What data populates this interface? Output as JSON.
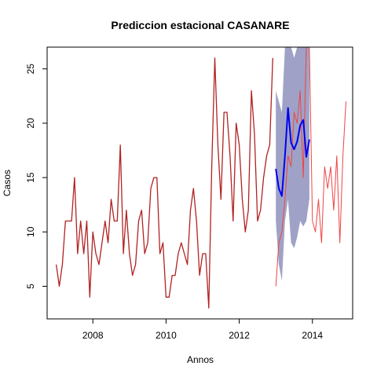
{
  "chart_data": {
    "type": "line",
    "title": "Prediccion estacional CASANARE",
    "xlabel": "Annos",
    "ylabel": "Casos",
    "xlim": [
      2006.75,
      2015.1
    ],
    "ylim": [
      2,
      27
    ],
    "x_ticks": [
      2008,
      2010,
      2012,
      2014
    ],
    "x_tick_labels": [
      "2008",
      "2010",
      "2012",
      "2014"
    ],
    "y_ticks": [
      5,
      10,
      15,
      20,
      25
    ],
    "y_tick_labels": [
      "5",
      "10",
      "15",
      "20",
      "25"
    ],
    "grid": false,
    "legend": "none",
    "series": [
      {
        "key": "observed",
        "color": "#b22222",
        "x_start": 2007.0,
        "step": 0.08333,
        "values": [
          7,
          5,
          7,
          11,
          11,
          11,
          15,
          8,
          11,
          8,
          11,
          4,
          10,
          8,
          7,
          9,
          11,
          9,
          13,
          11,
          11,
          18,
          8,
          12,
          8,
          6,
          7,
          11,
          12,
          8,
          9,
          14,
          15,
          15,
          8,
          9,
          4,
          4,
          6,
          6,
          8,
          9,
          8,
          7,
          12,
          14,
          11,
          6,
          8,
          8,
          3,
          16,
          26,
          18,
          13,
          21,
          21,
          17,
          11,
          20,
          18,
          13,
          10,
          12,
          23,
          19,
          11,
          12,
          15,
          17,
          18,
          26
        ]
      },
      {
        "key": "ci_band",
        "color": "#9fa2c6",
        "x_start": 2013.0,
        "step": 0.08333,
        "lower": [
          11,
          7,
          5.5,
          11,
          13,
          9,
          8.5,
          9.5,
          11,
          10.5,
          11,
          13
        ],
        "upper": [
          23,
          22,
          21,
          27,
          27,
          27,
          26,
          27,
          27,
          27,
          27,
          27
        ]
      },
      {
        "key": "actual",
        "color": "#ee4444",
        "x_start": 2013.0,
        "step": 0.08333,
        "values": [
          5,
          9,
          10,
          13,
          17,
          16,
          21,
          20,
          23,
          15,
          27,
          27,
          11,
          10,
          13,
          9,
          16,
          14,
          16,
          12,
          17,
          9,
          17,
          22
        ]
      },
      {
        "key": "forecast",
        "color": "#0000ee",
        "x_start": 2013.0,
        "step": 0.08333,
        "values": [
          15.8,
          14,
          13.3,
          17,
          21.4,
          18.2,
          17.6,
          18.3,
          19.8,
          20.3,
          16.9,
          18.5
        ]
      }
    ]
  }
}
